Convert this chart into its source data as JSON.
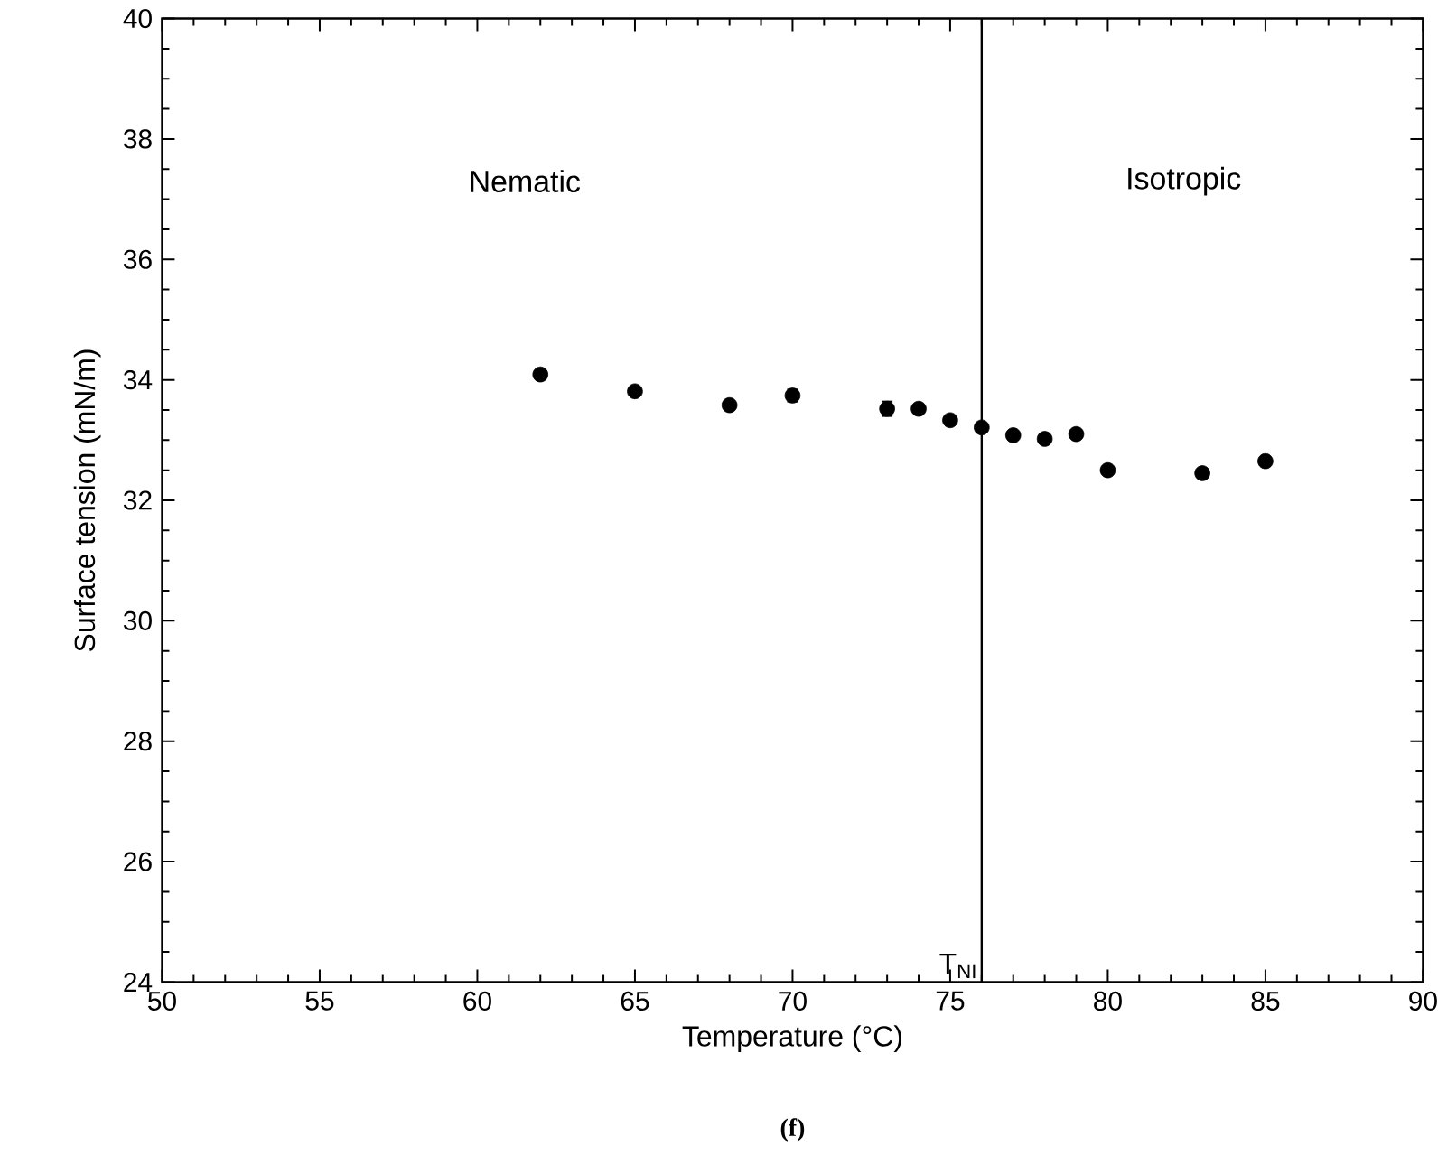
{
  "chart_data": {
    "type": "scatter",
    "xlabel": "Temperature (°C)",
    "ylabel": "Surface tension (mN/m)",
    "x": [
      62,
      65,
      68,
      70,
      73,
      74,
      75,
      76,
      77,
      78,
      79,
      80,
      83,
      85
    ],
    "values": [
      34.09,
      33.81,
      33.58,
      33.74,
      33.52,
      33.52,
      33.33,
      33.21,
      33.08,
      33.02,
      33.1,
      32.5,
      32.45,
      32.65
    ],
    "errors": [
      null,
      null,
      null,
      0.1,
      0.12,
      null,
      null,
      null,
      null,
      null,
      null,
      null,
      null,
      null
    ],
    "color": "#000000",
    "marker": "circle",
    "xlim": [
      50,
      90
    ],
    "xticks": [
      50,
      55,
      60,
      65,
      70,
      75,
      80,
      85,
      90
    ],
    "ylim": [
      24,
      40
    ],
    "yticks": [
      24,
      26,
      28,
      30,
      32,
      34,
      36,
      38,
      40
    ],
    "grid": false,
    "ref_lines": [
      {
        "axis": "x",
        "value": 76,
        "label": "T$_{NI}$",
        "color": "#000000"
      }
    ],
    "annotations": [
      "Nematic",
      "Isotropic",
      "(f)"
    ]
  }
}
